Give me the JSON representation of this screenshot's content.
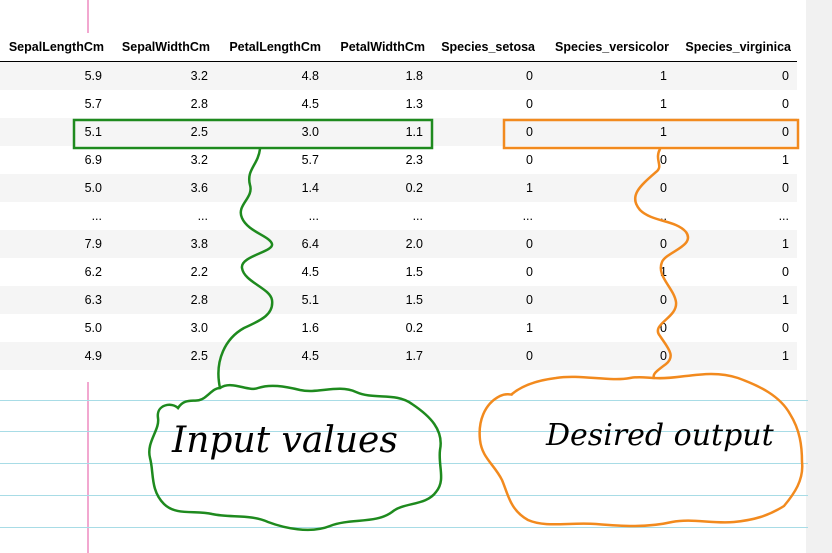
{
  "table": {
    "columns": [
      "SepalLengthCm",
      "SepalWidthCm",
      "PetalLengthCm",
      "PetalWidthCm",
      "Species_setosa",
      "Species_versicolor",
      "Species_virginica"
    ],
    "rows": [
      [
        "5.9",
        "3.2",
        "4.8",
        "1.8",
        "0",
        "1",
        "0"
      ],
      [
        "5.7",
        "2.8",
        "4.5",
        "1.3",
        "0",
        "1",
        "0"
      ],
      [
        "5.1",
        "2.5",
        "3.0",
        "1.1",
        "0",
        "1",
        "0"
      ],
      [
        "6.9",
        "3.2",
        "5.7",
        "2.3",
        "0",
        "0",
        "1"
      ],
      [
        "5.0",
        "3.6",
        "1.4",
        "0.2",
        "1",
        "0",
        "0"
      ],
      [
        "...",
        "...",
        "...",
        "...",
        "...",
        "...",
        "..."
      ],
      [
        "7.9",
        "3.8",
        "6.4",
        "2.0",
        "0",
        "0",
        "1"
      ],
      [
        "6.2",
        "2.2",
        "4.5",
        "1.5",
        "0",
        "1",
        "0"
      ],
      [
        "6.3",
        "2.8",
        "5.1",
        "1.5",
        "0",
        "0",
        "1"
      ],
      [
        "5.0",
        "3.0",
        "1.6",
        "0.2",
        "1",
        "0",
        "0"
      ],
      [
        "4.9",
        "2.5",
        "4.5",
        "1.7",
        "0",
        "0",
        "1"
      ]
    ]
  },
  "annotations": {
    "input_label": "Input values",
    "output_label": "Desired output",
    "input_color": "#1e8a1e",
    "output_color": "#f28a1e"
  }
}
